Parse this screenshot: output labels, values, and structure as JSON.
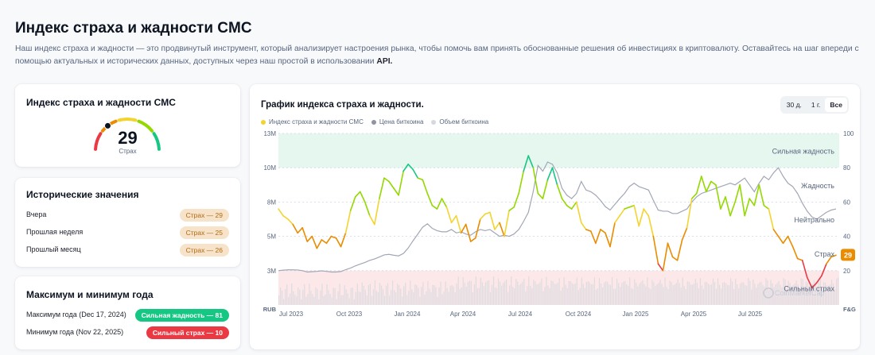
{
  "header": {
    "title": "Индекс страха и жадности CMC",
    "description": "Наш индекс страха и жадности — это продвинутый инструмент, который анализирует настроения рынка, чтобы помочь вам принять обоснованные решения об инвестициях в криптовалюту. Оставайтесь на шаг впереди с помощью актуальных и исторических данных, доступных через наш простой в использовании",
    "api_label": "API."
  },
  "gauge_card": {
    "title": "Индекс страха и жадности CMC",
    "value": "29",
    "label": "Страх",
    "level": 29,
    "colors": [
      "#ea3943",
      "#ea8c00",
      "#f3d42f",
      "#93d900",
      "#16c784"
    ]
  },
  "historical": {
    "title": "Исторические значения",
    "rows": [
      {
        "label": "Вчера",
        "badge": "Страх — 29"
      },
      {
        "label": "Прошлая неделя",
        "badge": "Страх — 25"
      },
      {
        "label": "Прошлый месяц",
        "badge": "Страх — 26"
      }
    ]
  },
  "extremes": {
    "title": "Максимум и минимум года",
    "max": {
      "label": "Максимум года (Dec 17, 2024)",
      "badge": "Сильная жадность — 81",
      "color": "#16c784"
    },
    "min": {
      "label": "Минимум года (Nov 22, 2025)",
      "badge": "Сильный страх — 10",
      "color": "#ea3943"
    }
  },
  "chart": {
    "title": "График индекса страха и жадности.",
    "ranges": [
      {
        "label": "30 д.",
        "active": false
      },
      {
        "label": "1 г.",
        "active": false
      },
      {
        "label": "Все",
        "active": true
      }
    ],
    "legend": [
      {
        "label": "Индекс страха и жадности CMC",
        "color": "#f3d42f"
      },
      {
        "label": "Цена биткоина",
        "color": "#8e94a3"
      },
      {
        "label": "Объем биткоина",
        "color": "#d5d8de"
      }
    ],
    "current_value": "29",
    "left_axis_title": "RUB",
    "right_axis_title": "F&G",
    "watermark": "CoinMarketCap"
  },
  "chart_data": {
    "type": "line",
    "x_ticks": [
      "Jul 2023",
      "Oct 2023",
      "Jan 2024",
      "Apr 2024",
      "Jul 2024",
      "Oct 2024",
      "Jan 2025",
      "Apr 2025",
      "Jul 2025"
    ],
    "left_ticks": [
      "13M",
      "10M",
      "8M",
      "5M",
      "3M"
    ],
    "right_ticks": [
      "100",
      "80",
      "60",
      "40",
      "20"
    ],
    "right_ylim": [
      0,
      100
    ],
    "zones": [
      {
        "label": "Сильная жадность",
        "value": 90
      },
      {
        "label": "Жадность",
        "value": 70
      },
      {
        "label": "Нейтрально",
        "value": 50
      },
      {
        "label": "Страх",
        "value": 30
      },
      {
        "label": "Сильный страх",
        "value": 10
      }
    ],
    "series": [
      {
        "name": "Индекс страха и жадности CMC",
        "axis": "right",
        "values": [
          56,
          52,
          50,
          47,
          42,
          45,
          37,
          40,
          33,
          38,
          36,
          40,
          39,
          34,
          42,
          55,
          63,
          66,
          60,
          52,
          47,
          62,
          74,
          72,
          68,
          64,
          78,
          82,
          79,
          74,
          73,
          65,
          58,
          56,
          62,
          57,
          48,
          52,
          42,
          47,
          37,
          39,
          50,
          53,
          54,
          44,
          48,
          40,
          55,
          57,
          65,
          78,
          87,
          80,
          65,
          62,
          73,
          80,
          70,
          62,
          58,
          56,
          60,
          48,
          44,
          43,
          36,
          44,
          42,
          34,
          48,
          52,
          56,
          57,
          58,
          46,
          56,
          52,
          40,
          24,
          20,
          36,
          28,
          26,
          38,
          45,
          62,
          65,
          75,
          66,
          72,
          70,
          56,
          63,
          52,
          60,
          70,
          52,
          62,
          58,
          70,
          58,
          56,
          44,
          40,
          36,
          40,
          34,
          27,
          26,
          16,
          10,
          13,
          17,
          24,
          28,
          29
        ]
      },
      {
        "name": "Цена биткоина",
        "axis": "left",
        "values": [
          3.0,
          3.03,
          3.05,
          3.05,
          3.04,
          3.0,
          2.92,
          2.94,
          2.96,
          2.99,
          2.96,
          2.92,
          2.92,
          2.95,
          3.06,
          3.15,
          3.28,
          3.38,
          3.48,
          3.6,
          3.68,
          3.8,
          3.92,
          3.95,
          3.9,
          3.86,
          4.0,
          4.32,
          4.74,
          5.2,
          5.8,
          6.1,
          5.7,
          5.5,
          5.4,
          5.4,
          5.6,
          5.3,
          5.4,
          5.2,
          5.1,
          5.4,
          5.6,
          5.5,
          5.6,
          5.3,
          5.0,
          5.1,
          5.0,
          5.2,
          5.6,
          6.3,
          7.1,
          8.6,
          10.2,
          9.8,
          10.5,
          10.3,
          9.7,
          8.8,
          8.4,
          8.2,
          8.5,
          9.2,
          8.7,
          8.6,
          8.4,
          8.1,
          7.6,
          7.3,
          7.8,
          8.2,
          8.5,
          8.9,
          9.1,
          8.9,
          8.8,
          8.7,
          8.1,
          7.3,
          7.2,
          7.2,
          7.0,
          7.0,
          7.2,
          7.4,
          8.0,
          8.3,
          8.5,
          8.6,
          8.7,
          8.8,
          8.9,
          9.0,
          9.1,
          9.0,
          9.2,
          9.4,
          9.0,
          8.6,
          9.1,
          9.5,
          9.3,
          9.7,
          10.0,
          9.5,
          9.1,
          8.9,
          8.5,
          7.9,
          7.2,
          6.7,
          6.5,
          6.8,
          7.1,
          7.3,
          7.4
        ]
      }
    ]
  }
}
